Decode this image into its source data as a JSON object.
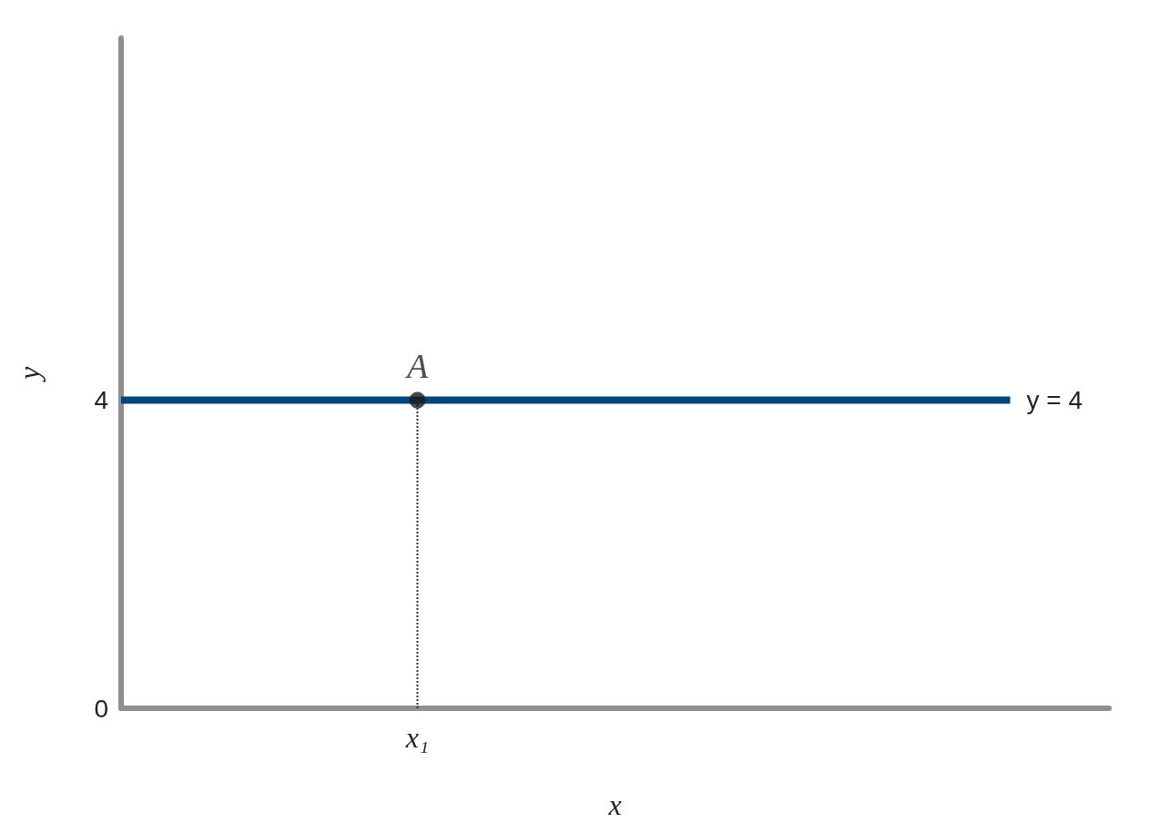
{
  "chart_data": {
    "type": "line",
    "xlabel": "x",
    "ylabel": "y",
    "categories": [
      null,
      null,
      null,
      "x₁",
      null,
      null,
      null,
      null,
      null,
      null,
      null
    ],
    "ylim": [
      0,
      8.7
    ],
    "yticks": [
      0,
      4
    ],
    "grid": false,
    "legend": false,
    "series": [
      {
        "name": "y = 4",
        "color": "#00467f",
        "values": [
          4,
          4,
          4,
          4,
          4,
          4,
          4,
          4,
          4,
          4,
          null
        ],
        "marker": "none",
        "line_style": "solid"
      },
      {
        "color": "#333333",
        "x": [
          "x₁",
          "x₁"
        ],
        "values": [
          0,
          4
        ],
        "marker": "none",
        "line_style": "dotted"
      },
      {
        "name": "A",
        "type": "scatter",
        "color": "#1a1a1a",
        "x": [
          "x₁"
        ],
        "values": [
          4
        ],
        "marker": "circle"
      }
    ]
  }
}
